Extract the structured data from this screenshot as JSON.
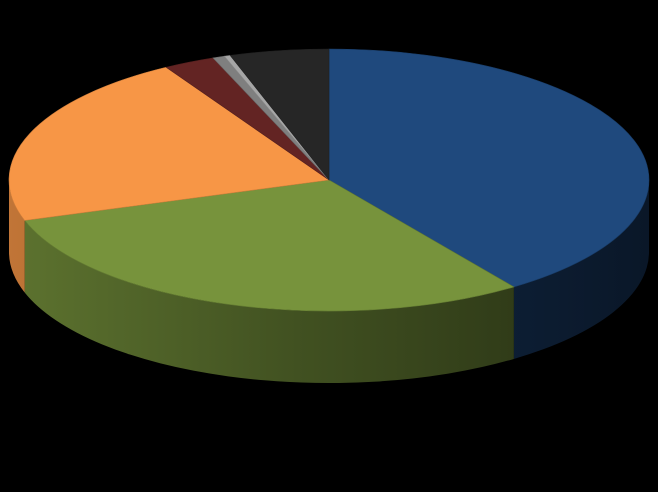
{
  "chart_data": {
    "type": "pie",
    "style": "3d",
    "title": "",
    "legend": "none",
    "data_labels": "none",
    "start": "top, clockwise",
    "slices": [
      {
        "value": 40.2,
        "color": "#1F497D"
      },
      {
        "value": 29.8,
        "color": "#77933C"
      },
      {
        "value": 21.5,
        "color": "#F79646"
      },
      {
        "value": 2.6,
        "color": "#632423"
      },
      {
        "value": 0.6,
        "color": "#7F7F7F"
      },
      {
        "value": 0.3,
        "color": "#A6A6A6"
      },
      {
        "value": 5.0,
        "color": "#262626"
      }
    ]
  }
}
